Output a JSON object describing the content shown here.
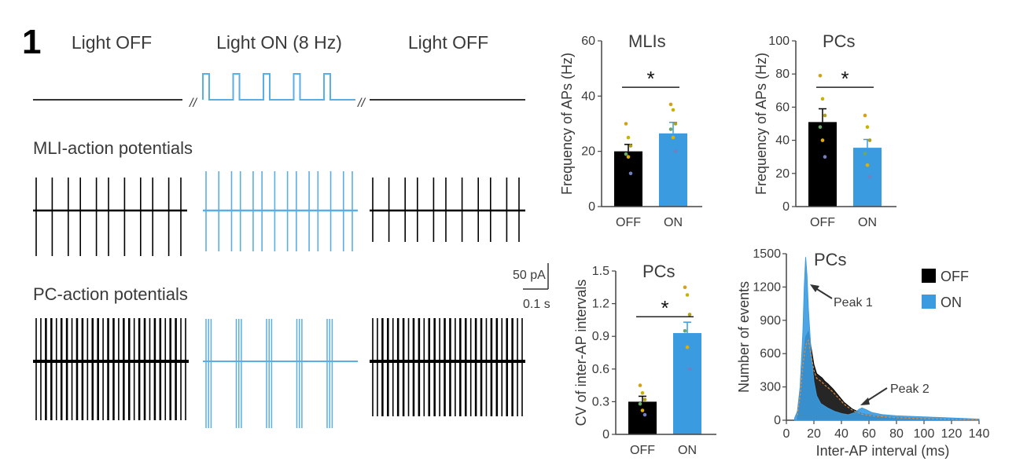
{
  "figure": {
    "panel_label": "1",
    "light_headers": [
      "Light OFF",
      "Light ON (8 Hz)",
      "Light OFF"
    ],
    "break_mark": "//",
    "trace_labels": {
      "mli": "MLI-action potentials",
      "pc": "PC-action potentials"
    },
    "scale_bar": {
      "current": "50 pA",
      "time": "0.1 s"
    },
    "colors": {
      "off": "#000000",
      "on": "#3b9be0",
      "trace_on": "#5aaee6"
    },
    "trace_counts": {
      "mli_off": 11,
      "mli_on": 14,
      "mli_off2": 11,
      "pc_off": 48,
      "pc_on_bursts": 5,
      "pc_off2": 48
    },
    "annotations": {
      "peak1": "Peak 1",
      "peak2": "Peak 2"
    },
    "star": "*"
  },
  "chart_data": [
    {
      "type": "bar",
      "title": "MLIs",
      "ylabel": "Frequency of APs (Hz)",
      "categories": [
        "OFF",
        "ON"
      ],
      "values": [
        20,
        26.5
      ],
      "errors": [
        2.5,
        4
      ],
      "ylim": [
        0,
        60
      ],
      "yticks": [
        0,
        20,
        40,
        60
      ],
      "points": [
        [
          30,
          25,
          22,
          19,
          18,
          12
        ],
        [
          37,
          35,
          30,
          28,
          25,
          20
        ]
      ],
      "significance": "*"
    },
    {
      "type": "bar",
      "title": "PCs",
      "ylabel": "Frequency of APs (Hz)",
      "categories": [
        "OFF",
        "ON"
      ],
      "values": [
        51,
        35.5
      ],
      "errors": [
        8,
        5
      ],
      "ylim": [
        0,
        100
      ],
      "yticks": [
        0,
        20,
        40,
        60,
        80,
        100
      ],
      "points": [
        [
          79,
          65,
          55,
          48,
          40,
          30
        ],
        [
          55,
          48,
          40,
          32,
          25,
          18
        ]
      ],
      "significance": "*"
    },
    {
      "type": "bar",
      "title": "PCs",
      "ylabel": "CV of inter-AP intervals",
      "categories": [
        "OFF",
        "ON"
      ],
      "values": [
        0.3,
        0.93
      ],
      "errors": [
        0.05,
        0.1
      ],
      "ylim": [
        0,
        1.5
      ],
      "yticks": [
        0,
        0.3,
        0.6,
        0.9,
        1.2,
        1.5
      ],
      "points": [
        [
          0.45,
          0.38,
          0.32,
          0.28,
          0.22,
          0.18
        ],
        [
          1.35,
          1.28,
          1.1,
          0.95,
          0.8,
          0.6
        ]
      ],
      "significance": "*"
    },
    {
      "type": "area",
      "title": "PCs",
      "xlabel": "Inter-AP interval (ms)",
      "ylabel": "Number of events",
      "xlim": [
        0,
        140
      ],
      "ylim": [
        0,
        1500
      ],
      "xticks": [
        0,
        20,
        40,
        60,
        80,
        100,
        120,
        140
      ],
      "yticks": [
        0,
        300,
        600,
        900,
        1200,
        1500
      ],
      "legend": [
        "OFF",
        "ON"
      ],
      "legend_position": "top-right",
      "series": [
        {
          "name": "OFF",
          "x": [
            8,
            10,
            12,
            14,
            16,
            18,
            20,
            22,
            24,
            26,
            28,
            30,
            34,
            38,
            42,
            48,
            55,
            65,
            80,
            100,
            120,
            140
          ],
          "values": [
            50,
            250,
            550,
            750,
            800,
            650,
            500,
            420,
            400,
            380,
            350,
            330,
            280,
            220,
            160,
            100,
            60,
            40,
            25,
            15,
            10,
            5
          ]
        },
        {
          "name": "ON",
          "x": [
            6,
            8,
            10,
            12,
            13,
            14,
            15,
            16,
            18,
            20,
            22,
            25,
            30,
            35,
            40,
            45,
            50,
            53,
            55,
            58,
            62,
            70,
            80,
            100,
            120,
            140
          ],
          "values": [
            20,
            80,
            300,
            800,
            1200,
            1470,
            1300,
            1000,
            600,
            350,
            220,
            150,
            110,
            80,
            60,
            50,
            70,
            100,
            110,
            95,
            70,
            50,
            40,
            30,
            20,
            10
          ]
        }
      ]
    }
  ]
}
